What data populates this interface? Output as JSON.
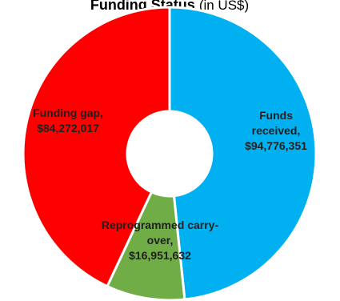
{
  "chart_data": {
    "type": "donut",
    "title": "Funding Status",
    "subtitle": "(in US$)",
    "categories": [
      "Funds received,",
      "Reprogrammed carry-over,",
      "Funding gap,"
    ],
    "values": [
      94776351,
      16951632,
      84272017
    ],
    "value_labels": [
      "$94,776,351",
      "$16,951,632",
      "$84,272,017"
    ],
    "colors": [
      "#00b0f0",
      "#70ad47",
      "#ff0000"
    ]
  }
}
